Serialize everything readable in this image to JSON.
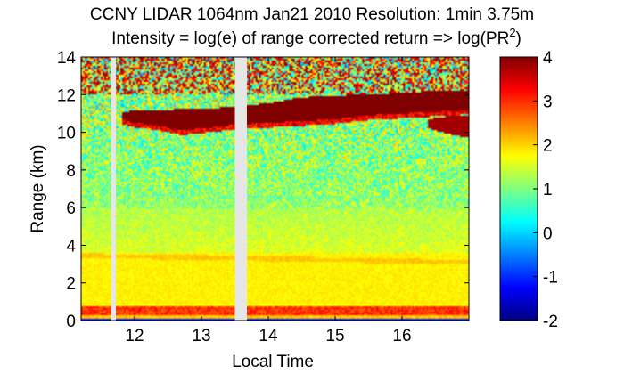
{
  "chart_data": {
    "type": "heatmap",
    "title_line1": "CCNY LIDAR 1064nm Jan21 2010 Resolution: 1min 3.75m",
    "title_line2_prefix": "Intensity = log(e) of range corrected return => log(PR",
    "title_line2_superscript": "2",
    "title_line2_suffix": ")",
    "xlabel": "Local Time",
    "ylabel": "Range (km)",
    "xlim": [
      11.2,
      17.0
    ],
    "ylim": [
      0,
      14
    ],
    "xticks": [
      12,
      13,
      14,
      15,
      16
    ],
    "yticks": [
      0,
      2,
      4,
      6,
      8,
      10,
      12,
      14
    ],
    "colorbar": {
      "range": [
        -2,
        4
      ],
      "ticks": [
        -2,
        -1,
        0,
        1,
        2,
        3,
        4
      ],
      "colormap": "jet"
    },
    "data_gaps": [
      {
        "x_start": 11.65,
        "x_end": 11.72
      },
      {
        "x_start": 13.5,
        "x_end": 13.68
      }
    ],
    "features": {
      "cloud_layer": {
        "value": 4,
        "top_profile": [
          [
            11.8,
            11.05
          ],
          [
            12.0,
            11.15
          ],
          [
            12.5,
            11.2
          ],
          [
            13.0,
            11.25
          ],
          [
            13.5,
            11.35
          ],
          [
            14.0,
            11.55
          ],
          [
            14.5,
            11.85
          ],
          [
            15.0,
            11.95
          ],
          [
            15.5,
            12.0
          ],
          [
            16.0,
            12.1
          ],
          [
            16.5,
            12.2
          ],
          [
            17.0,
            12.25
          ]
        ],
        "bottom_profile": [
          [
            11.8,
            10.7
          ],
          [
            12.0,
            10.5
          ],
          [
            12.3,
            10.4
          ],
          [
            12.7,
            10.1
          ],
          [
            13.0,
            10.2
          ],
          [
            13.5,
            10.4
          ],
          [
            14.0,
            10.5
          ],
          [
            14.5,
            10.6
          ],
          [
            15.0,
            10.7
          ],
          [
            15.5,
            10.9
          ],
          [
            16.0,
            11.0
          ],
          [
            16.5,
            11.1
          ],
          [
            17.0,
            11.2
          ]
        ]
      },
      "lower_cloud": {
        "value": 3.8,
        "top_profile": [
          [
            16.4,
            10.7
          ],
          [
            16.7,
            10.85
          ],
          [
            17.0,
            10.9
          ]
        ],
        "bottom_profile": [
          [
            16.4,
            10.2
          ],
          [
            16.7,
            9.9
          ],
          [
            17.0,
            9.7
          ]
        ]
      },
      "surface_layer_km": [
        0.3,
        0.8
      ],
      "boundary_layer_top_km": 3.4
    }
  }
}
